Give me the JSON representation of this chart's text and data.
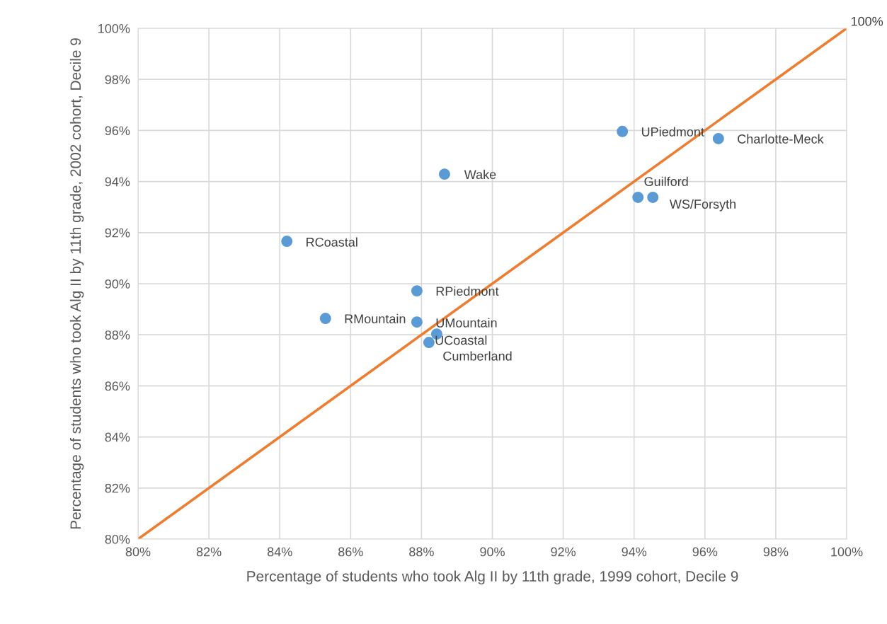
{
  "chart_data": {
    "type": "scatter",
    "xlabel": "Percentage of students who took Alg II by 11th grade, 1999 cohort, Decile 9",
    "ylabel": "Percentage of students who took Alg II by 11th grade, 2002 cohort, Decile 9",
    "series": [
      {
        "marker": "circle",
        "color": "#5b9bd5",
        "x": [
          93.67,
          96.38,
          88.65,
          94.11,
          94.53,
          84.2,
          87.87,
          85.29,
          87.87,
          88.43,
          88.21
        ],
        "values": [
          95.96,
          95.68,
          94.29,
          93.38,
          93.38,
          91.66,
          89.72,
          88.64,
          88.5,
          88.03,
          87.7
        ]
      },
      {
        "type": "line",
        "color": "#ed7d31",
        "x": [
          80,
          100
        ],
        "values": [
          80,
          100
        ]
      }
    ],
    "annotations": [
      {
        "text": "UPiedmont",
        "x": 93.67,
        "y": 95.96
      },
      {
        "text": "Charlotte-Meck",
        "x": 96.38,
        "y": 95.68
      },
      {
        "text": "Wake",
        "x": 88.65,
        "y": 94.29
      },
      {
        "text": "Guilford",
        "x": 94.11,
        "y": 93.38
      },
      {
        "text": "WS/Forsyth",
        "x": 94.53,
        "y": 93.38
      },
      {
        "text": "RCoastal",
        "x": 84.2,
        "y": 91.66
      },
      {
        "text": "RPiedmont",
        "x": 87.87,
        "y": 89.72
      },
      {
        "text": "RMountain",
        "x": 85.29,
        "y": 88.64
      },
      {
        "text": "UMountain",
        "x": 87.87,
        "y": 88.5
      },
      {
        "text": "UCoastal",
        "x": 88.43,
        "y": 88.03
      },
      {
        "text": "Cumberland",
        "x": 88.21,
        "y": 87.7
      },
      {
        "text": "100%",
        "x": 100,
        "y": 100
      }
    ],
    "xlim": [
      80,
      100
    ],
    "ylim": [
      80,
      100
    ],
    "xticks": [
      {
        "value": 80,
        "label": "80%"
      },
      {
        "value": 82,
        "label": "82%"
      },
      {
        "value": 84,
        "label": "84%"
      },
      {
        "value": 86,
        "label": "86%"
      },
      {
        "value": 88,
        "label": "88%"
      },
      {
        "value": 90,
        "label": "90%"
      },
      {
        "value": 92,
        "label": "92%"
      },
      {
        "value": 94,
        "label": "94%"
      },
      {
        "value": 96,
        "label": "96%"
      },
      {
        "value": 98,
        "label": "98%"
      },
      {
        "value": 100,
        "label": "100%"
      }
    ],
    "yticks": [
      {
        "value": 80,
        "label": "80%"
      },
      {
        "value": 82,
        "label": "82%"
      },
      {
        "value": 84,
        "label": "84%"
      },
      {
        "value": 86,
        "label": "86%"
      },
      {
        "value": 88,
        "label": "88%"
      },
      {
        "value": 90,
        "label": "90%"
      },
      {
        "value": 92,
        "label": "92%"
      },
      {
        "value": 94,
        "label": "94%"
      },
      {
        "value": 96,
        "label": "96%"
      },
      {
        "value": 98,
        "label": "98%"
      },
      {
        "value": 100,
        "label": "100%"
      }
    ],
    "grid": true,
    "legend": false
  }
}
